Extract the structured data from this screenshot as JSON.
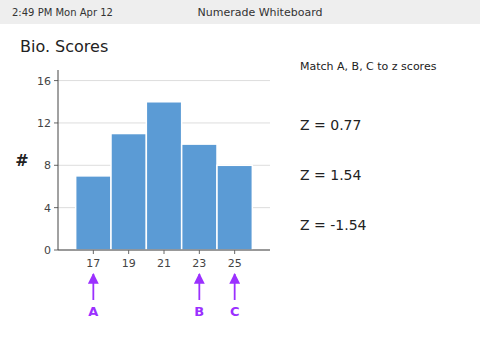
{
  "chart_data": {
    "type": "histogram",
    "title": "Bio. Scores",
    "ylabel": "#",
    "bins": [
      16,
      18,
      20,
      22,
      24,
      26
    ],
    "values": [
      7,
      11,
      14,
      10,
      8
    ],
    "color": "#5B9BD5",
    "xlim": [
      15,
      27
    ],
    "ylim": [
      0,
      17
    ],
    "xticks": [
      17,
      19,
      21,
      23,
      25
    ],
    "yticks": [
      0,
      4,
      8,
      12,
      16
    ],
    "grid": "y",
    "annotations": [
      {
        "text": "A",
        "x": 17,
        "color": "#9B30FF"
      },
      {
        "text": "B",
        "x": 23,
        "color": "#9B30FF"
      },
      {
        "text": "C",
        "x": 25,
        "color": "#9B30FF"
      }
    ],
    "side_title": "Match A, B, C to z scores",
    "side_lines": [
      "Z = 0.77",
      "Z = 1.54",
      "Z = -1.54"
    ],
    "header": [
      "2:49 PM  Mon Apr 12",
      "Numerade Whiteboard"
    ]
  }
}
